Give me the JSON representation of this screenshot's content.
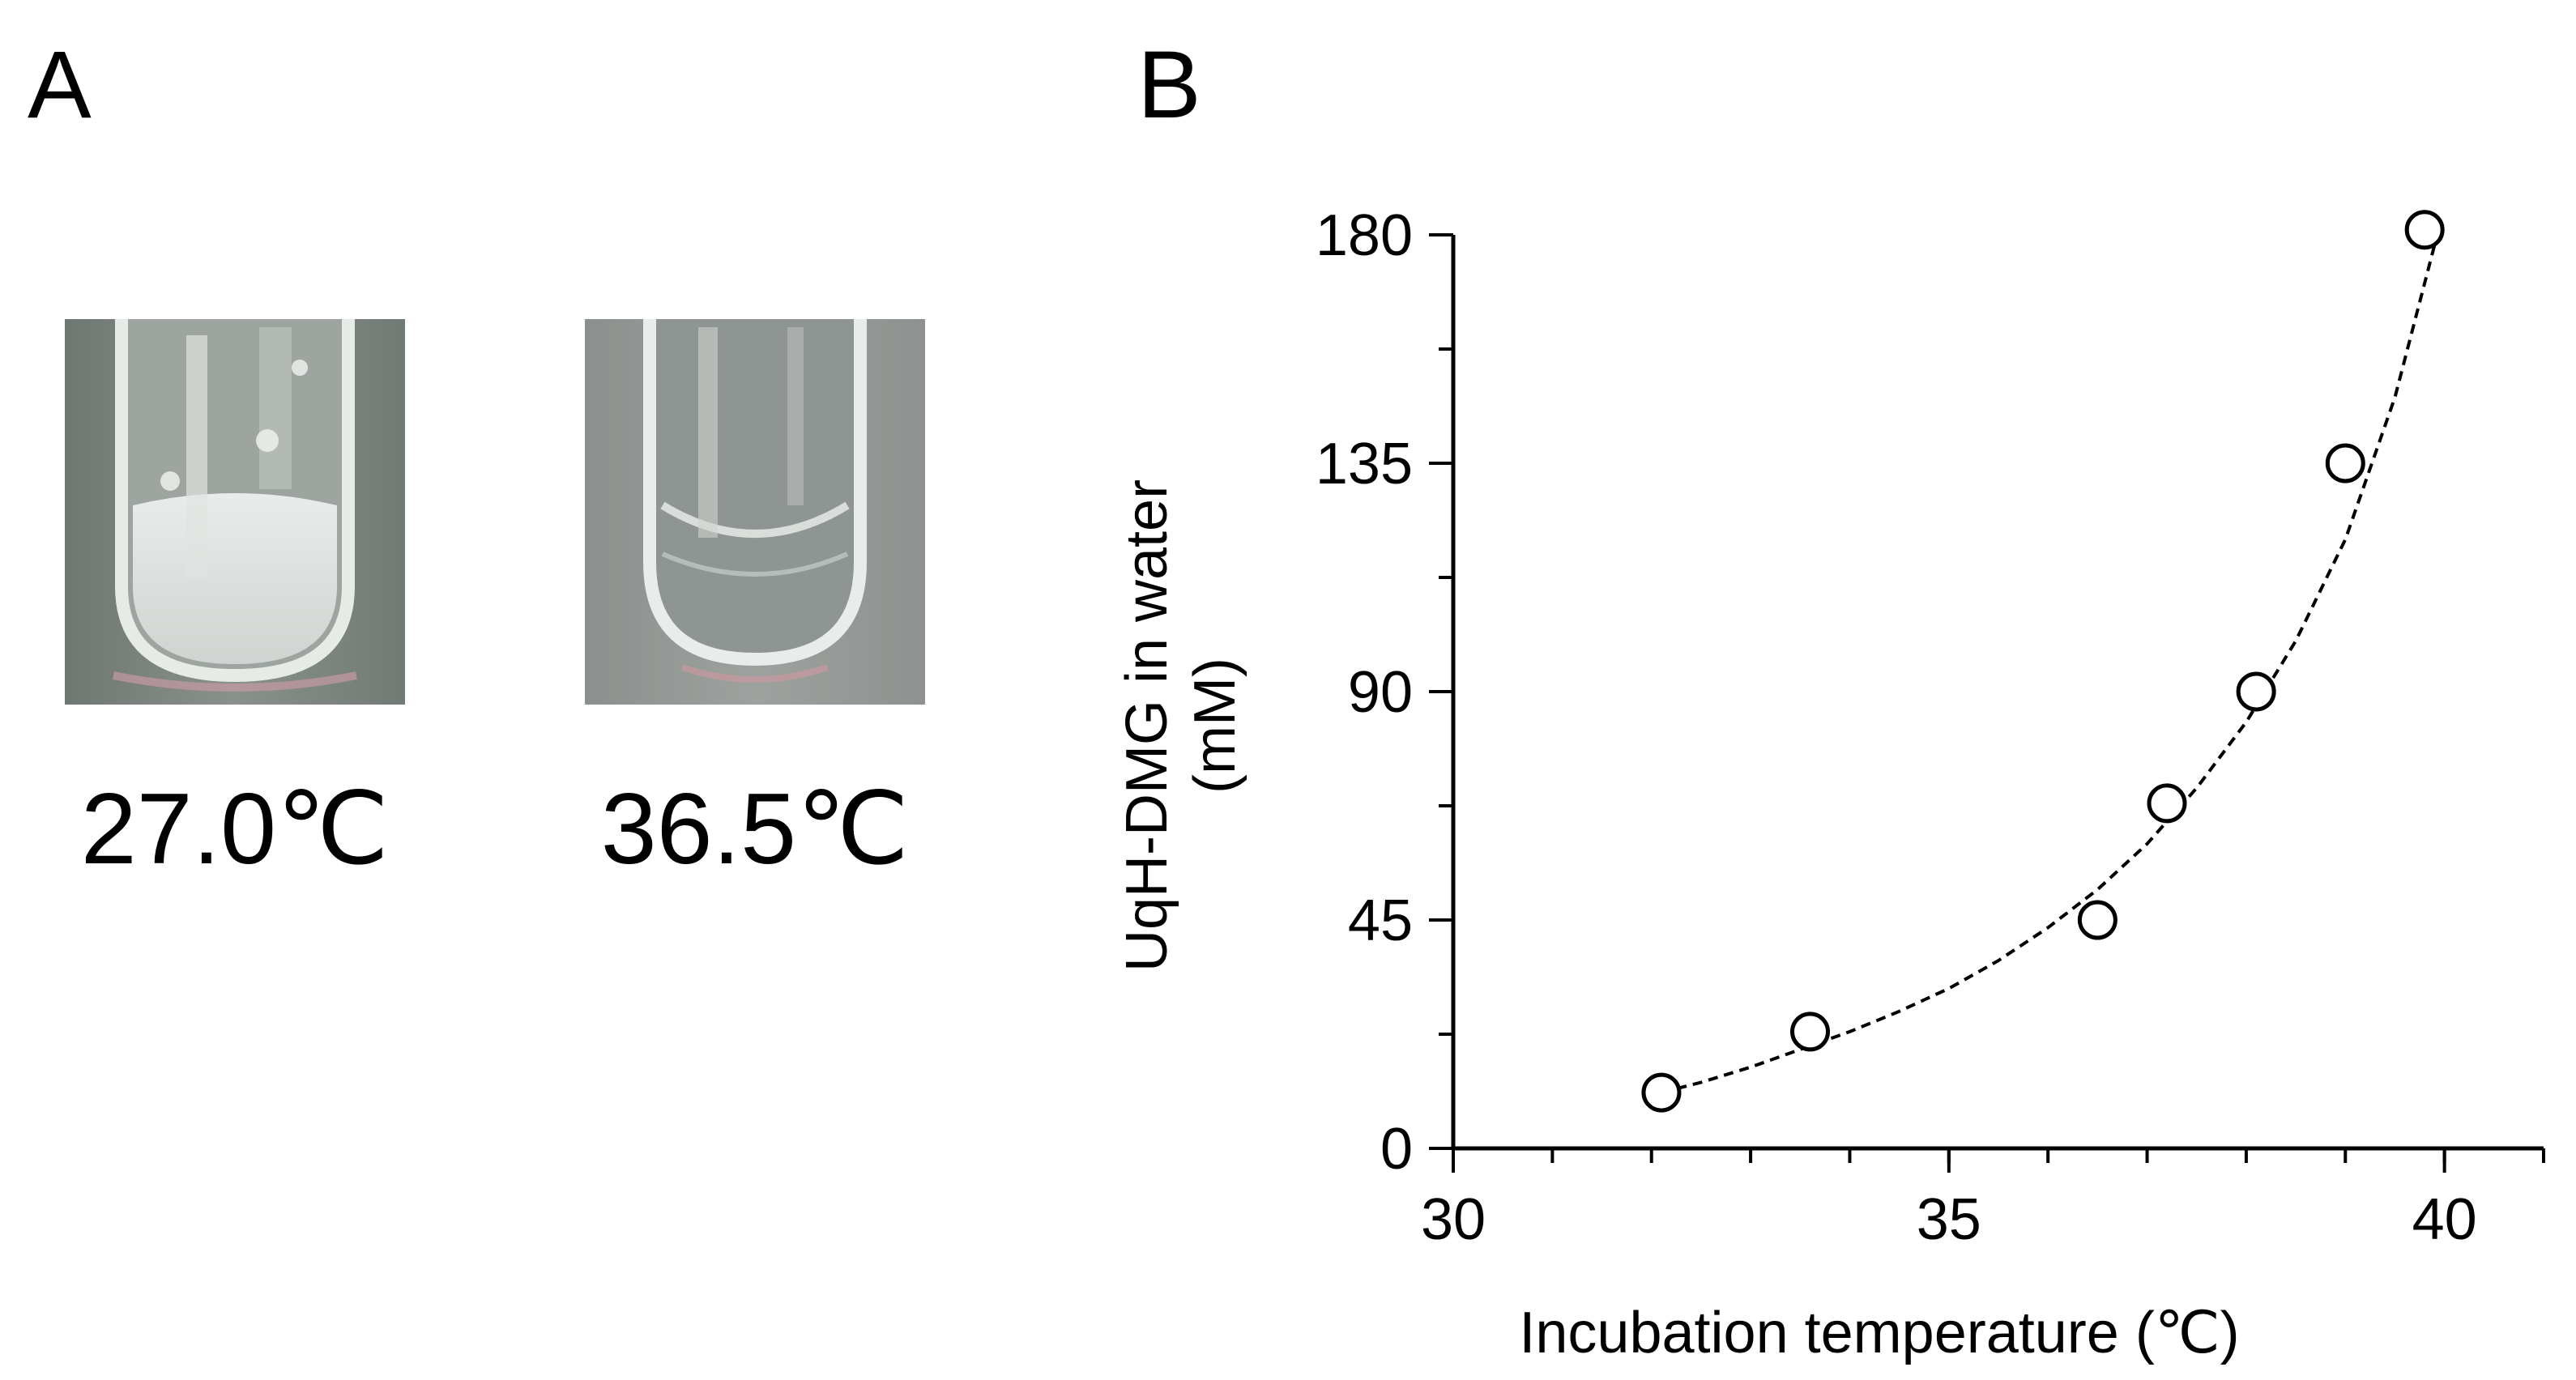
{
  "panels": {
    "a_label": "A",
    "b_label": "B"
  },
  "photos": [
    {
      "caption": "27.0℃",
      "state": "cloudy"
    },
    {
      "caption": "36.5℃",
      "state": "clear"
    }
  ],
  "chart_data": {
    "type": "scatter",
    "title": "",
    "xlabel": "Incubation temperature (℃)",
    "ylabel_line1": "UqH-DMG in water",
    "ylabel_line2": "(mM)",
    "xlim": [
      30,
      41
    ],
    "ylim": [
      0,
      180
    ],
    "x_ticks": [
      30,
      35,
      40
    ],
    "y_ticks": [
      0,
      45,
      90,
      135,
      180
    ],
    "x_minor_step": 1,
    "y_minor_step": 22.5,
    "grid": false,
    "marker": "open-circle",
    "fit": "exponential-dashed",
    "points": [
      {
        "x": 32.1,
        "y": 11
      },
      {
        "x": 33.6,
        "y": 23
      },
      {
        "x": 36.5,
        "y": 45
      },
      {
        "x": 37.2,
        "y": 68
      },
      {
        "x": 38.1,
        "y": 90
      },
      {
        "x": 39.0,
        "y": 135
      },
      {
        "x": 39.8,
        "y": 181
      }
    ],
    "fit_curve": [
      [
        32.1,
        11
      ],
      [
        32.5,
        13
      ],
      [
        33.0,
        16
      ],
      [
        33.5,
        19.5
      ],
      [
        34.0,
        23
      ],
      [
        34.5,
        27
      ],
      [
        35.0,
        31.5
      ],
      [
        35.5,
        37
      ],
      [
        36.0,
        43.5
      ],
      [
        36.5,
        51
      ],
      [
        37.0,
        60
      ],
      [
        37.5,
        71
      ],
      [
        38.0,
        84
      ],
      [
        38.5,
        100
      ],
      [
        39.0,
        120
      ],
      [
        39.5,
        148
      ],
      [
        39.9,
        178
      ]
    ]
  }
}
